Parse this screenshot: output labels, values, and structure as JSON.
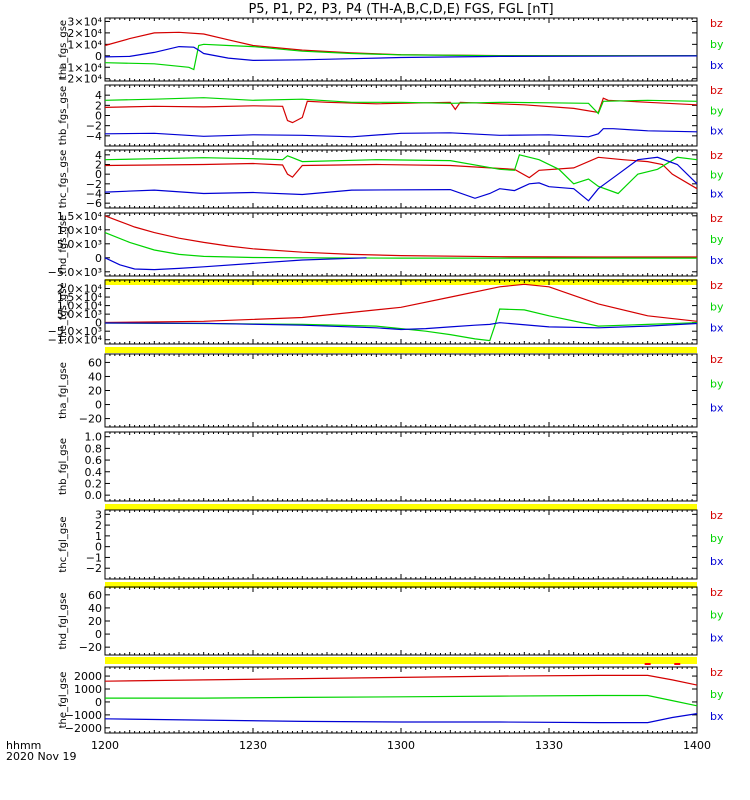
{
  "title": "P5, P1, P2, P3, P4 (TH-A,B,C,D,E) FGS, FGL [nT]",
  "footer": {
    "label": "hhmm",
    "date": "2020 Nov 19"
  },
  "colors": {
    "bz": "#d40000",
    "by": "#00d400",
    "bx": "#0000d4",
    "bar": "#ffff00",
    "flag": "#ff0000"
  },
  "chart_data": {
    "type": "line",
    "x_ticks": [
      "1200",
      "1230",
      "1300",
      "1330",
      "1400"
    ],
    "xlim": [
      0,
      120
    ],
    "x_unit": "minutes after 12:00 UT",
    "legend": [
      "bz",
      "by",
      "bx"
    ],
    "panels": [
      {
        "ylabel": "tha_fgs_gse",
        "ylim": [
          -22000,
          33000
        ],
        "yticks": [
          "3×10⁴",
          "2×10⁴",
          "1×10⁴",
          "0",
          "−1×10⁴",
          "−2×10⁴"
        ],
        "yvals": [
          30000,
          20000,
          10000,
          0,
          -10000,
          -20000
        ],
        "series": [
          {
            "name": "bz",
            "x": [
              0,
              5,
              10,
              15,
              20,
              25,
              30,
              40,
              50,
              60,
              80,
              100,
              120
            ],
            "y": [
              9000,
              15000,
              20000,
              20500,
              19000,
              14000,
              9000,
              5000,
              2500,
              1000,
              200,
              80,
              50
            ]
          },
          {
            "name": "by",
            "x": [
              0,
              10,
              17,
              18,
              19,
              20,
              25,
              30,
              40,
              50,
              60,
              80,
              120
            ],
            "y": [
              -6000,
              -7000,
              -10000,
              -12000,
              9000,
              10000,
              9000,
              8000,
              4000,
              2000,
              800,
              100,
              50
            ]
          },
          {
            "name": "bx",
            "x": [
              0,
              5,
              10,
              15,
              18,
              19,
              20,
              25,
              30,
              40,
              50,
              60,
              80,
              120
            ],
            "y": [
              -1000,
              -500,
              3000,
              8000,
              7500,
              5000,
              2000,
              -2000,
              -4000,
              -3500,
              -2500,
              -1500,
              -500,
              -100
            ]
          }
        ],
        "bar_after": false
      },
      {
        "ylabel": "thb_fgs_gse",
        "ylim": [
          -6,
          6
        ],
        "yticks": [
          "4",
          "2",
          "0",
          "−2",
          "−4"
        ],
        "yvals": [
          4,
          2,
          0,
          -2,
          -4
        ],
        "series": [
          {
            "name": "bz",
            "x": [
              0,
              10,
              20,
              30,
              36,
              37,
              38,
              40,
              41,
              45,
              55,
              70,
              71,
              72,
              85,
              95,
              100,
              101,
              102,
              110,
              120
            ],
            "y": [
              1.6,
              1.8,
              1.7,
              1.9,
              1.8,
              -1,
              -1.4,
              -0.4,
              2.8,
              2.6,
              2.3,
              2.6,
              1.2,
              2.6,
              2.1,
              1.4,
              0.6,
              3.4,
              3.0,
              2.6,
              2.1
            ]
          },
          {
            "name": "by",
            "x": [
              0,
              10,
              20,
              30,
              40,
              50,
              60,
              70,
              80,
              90,
              98,
              100,
              101,
              110,
              120
            ],
            "y": [
              3.0,
              3.2,
              3.5,
              3.0,
              3.2,
              2.6,
              2.6,
              2.4,
              2.6,
              2.5,
              2.4,
              0.4,
              2.8,
              3.0,
              2.8
            ]
          },
          {
            "name": "bx",
            "x": [
              0,
              10,
              20,
              30,
              40,
              50,
              60,
              70,
              80,
              90,
              98,
              100,
              101,
              103,
              110,
              120
            ],
            "y": [
              -3.6,
              -3.5,
              -4.1,
              -3.8,
              -3.9,
              -4.2,
              -3.5,
              -3.4,
              -3.9,
              -3.8,
              -4.2,
              -3.6,
              -2.6,
              -2.6,
              -3.0,
              -3.2
            ]
          }
        ],
        "bar_after": false
      },
      {
        "ylabel": "thc_fgs_gse",
        "ylim": [
          -7,
          5
        ],
        "yticks": [
          "4",
          "2",
          "0",
          "−2",
          "−4",
          "−6"
        ],
        "yvals": [
          4,
          2,
          0,
          -2,
          -4,
          -6
        ],
        "series": [
          {
            "name": "bz",
            "x": [
              0,
              10,
              20,
              30,
              36,
              37,
              38,
              40,
              55,
              70,
              83,
              86,
              88,
              95,
              100,
              105,
              110,
              113,
              115,
              120
            ],
            "y": [
              1.8,
              1.9,
              2.0,
              2.2,
              1.9,
              0.0,
              -0.6,
              1.8,
              2.0,
              1.8,
              1.0,
              -0.7,
              0.8,
              1.3,
              3.5,
              3.0,
              2.6,
              2.0,
              0.0,
              -3.0
            ]
          },
          {
            "name": "by",
            "x": [
              0,
              10,
              20,
              30,
              36,
              37,
              38,
              40,
              55,
              70,
              80,
              83,
              84,
              88,
              92,
              95,
              98,
              100,
              104,
              108,
              112,
              116,
              120
            ],
            "y": [
              3.0,
              3.2,
              3.4,
              3.2,
              3.0,
              3.8,
              3.4,
              2.6,
              3.0,
              2.8,
              1.0,
              0.8,
              4.0,
              3.0,
              1.0,
              -2.0,
              -1.0,
              -2.5,
              -4.0,
              0.0,
              1.0,
              3.5,
              3.0
            ]
          },
          {
            "name": "bx",
            "x": [
              0,
              10,
              20,
              30,
              40,
              50,
              70,
              75,
              78,
              80,
              83,
              86,
              88,
              90,
              95,
              98,
              100,
              104,
              108,
              112,
              116,
              120
            ],
            "y": [
              -3.7,
              -3.3,
              -4.0,
              -3.8,
              -4.2,
              -3.3,
              -3.2,
              -5.0,
              -4.0,
              -3.0,
              -3.4,
              -2.0,
              -1.8,
              -2.6,
              -3.0,
              -5.5,
              -3.0,
              0.0,
              3.0,
              3.5,
              2.0,
              -2.0
            ]
          }
        ],
        "bar_after": false
      },
      {
        "ylabel": "thd_fgs_gse",
        "ylim": [
          -6500,
          16000
        ],
        "yticks": [
          "1.5×10⁴",
          "1.0×10⁴",
          "5.0×10³",
          "0",
          "−5.0×10³"
        ],
        "yvals": [
          15000,
          10000,
          5000,
          0,
          -5000
        ],
        "series": [
          {
            "name": "bz",
            "x": [
              0,
              3,
              6,
              10,
              15,
              20,
              25,
              30,
              40,
              50,
              60,
              80,
              100,
              120
            ],
            "y": [
              15000,
              13000,
              11000,
              9000,
              7000,
              5500,
              4200,
              3200,
              2000,
              1200,
              800,
              400,
              300,
              300
            ]
          },
          {
            "name": "by",
            "x": [
              0,
              5,
              10,
              15,
              20,
              30,
              40,
              60,
              80,
              120
            ],
            "y": [
              9000,
              5500,
              2800,
              1200,
              500,
              100,
              0,
              -100,
              -100,
              -100
            ]
          },
          {
            "name": "bx",
            "x": [
              0,
              3,
              6,
              10,
              15,
              20,
              30,
              40,
              53
            ],
            "y": [
              0,
              -2500,
              -4000,
              -4200,
              -3800,
              -3200,
              -2000,
              -800,
              0
            ]
          }
        ],
        "bar_after": true
      },
      {
        "ylabel": "the_fgs_gse",
        "ylim": [
          -12500,
          25000
        ],
        "yticks": [
          "2.0×10⁴",
          "1.5×10⁴",
          "1.0×10⁴",
          "5.0×10³",
          "0",
          "−5.0×10³",
          "−1.0×10⁴"
        ],
        "yvals": [
          20000,
          15000,
          10000,
          5000,
          0,
          -5000,
          -10000
        ],
        "series": [
          {
            "name": "bz",
            "x": [
              0,
              20,
              40,
              60,
              70,
              80,
              85,
              90,
              95,
              100,
              110,
              120
            ],
            "y": [
              100,
              800,
              3000,
              9000,
              15000,
              21000,
              22500,
              21000,
              16000,
              11000,
              4000,
              800
            ]
          },
          {
            "name": "by",
            "x": [
              0,
              20,
              40,
              55,
              60,
              65,
              70,
              75,
              78,
              79,
              80,
              85,
              90,
              100,
              110,
              120
            ],
            "y": [
              -200,
              -500,
              -1000,
              -2000,
              -3500,
              -5000,
              -7000,
              -9500,
              -10500,
              -2000,
              8000,
              7500,
              4000,
              -2000,
              -1000,
              0
            ]
          },
          {
            "name": "bx",
            "x": [
              0,
              20,
              40,
              55,
              60,
              65,
              70,
              75,
              78,
              80,
              82,
              90,
              100,
              110,
              120
            ],
            "y": [
              -200,
              -400,
              -1500,
              -3000,
              -4000,
              -3500,
              -2500,
              -1500,
              -1000,
              0,
              -500,
              -2500,
              -3000,
              -2000,
              -500
            ]
          }
        ],
        "bar_after": true
      },
      {
        "ylabel": "tha_fgl_gse",
        "ylim": [
          -32,
          72
        ],
        "yticks": [
          "60",
          "40",
          "20",
          "0",
          "−20"
        ],
        "yvals": [
          60,
          40,
          20,
          0,
          -20
        ],
        "series": [],
        "bar_after": false
      },
      {
        "ylabel": "thb_fgl_gse",
        "ylim": [
          -0.1,
          1.08
        ],
        "yticks": [
          "1.0",
          "0.8",
          "0.6",
          "0.4",
          "0.2",
          "0.0"
        ],
        "yvals": [
          1.0,
          0.8,
          0.6,
          0.4,
          0.2,
          0.0
        ],
        "series": [],
        "bar_after": true,
        "no_legend": true
      },
      {
        "ylabel": "thc_fgl_gse",
        "ylim": [
          -3,
          3.4
        ],
        "yticks": [
          "3",
          "2",
          "1",
          "0",
          "−1",
          "−2"
        ],
        "yvals": [
          3,
          2,
          1,
          0,
          -1,
          -2
        ],
        "series": [],
        "bar_after": true
      },
      {
        "ylabel": "thd_fgl_gse",
        "ylim": [
          -32,
          72
        ],
        "yticks": [
          "60",
          "40",
          "20",
          "0",
          "−20"
        ],
        "yvals": [
          60,
          40,
          20,
          0,
          -20
        ],
        "series": [],
        "bar_after": true
      },
      {
        "ylabel": "the_fgl_gse",
        "ylim": [
          -2400,
          2700
        ],
        "yticks": [
          "2000",
          "1000",
          "0",
          "−1000",
          "−2000"
        ],
        "yvals": [
          2000,
          1000,
          0,
          -1000,
          -2000
        ],
        "series": [
          {
            "name": "bz",
            "x": [
              0,
              20,
              40,
              60,
              80,
              100,
              110,
              115,
              120
            ],
            "y": [
              1600,
              1700,
              1800,
              1900,
              2000,
              2050,
              2050,
              1700,
              1300
            ]
          },
          {
            "name": "by",
            "x": [
              0,
              20,
              40,
              60,
              80,
              100,
              110,
              115,
              120
            ],
            "y": [
              300,
              300,
              350,
              400,
              450,
              500,
              500,
              100,
              -300
            ]
          },
          {
            "name": "bx",
            "x": [
              0,
              20,
              40,
              60,
              80,
              100,
              110,
              115,
              120
            ],
            "y": [
              -1300,
              -1400,
              -1500,
              -1550,
              -1550,
              -1600,
              -1600,
              -1200,
              -900
            ]
          }
        ],
        "flags": [
          110,
          116
        ],
        "bar_after": false
      }
    ]
  }
}
